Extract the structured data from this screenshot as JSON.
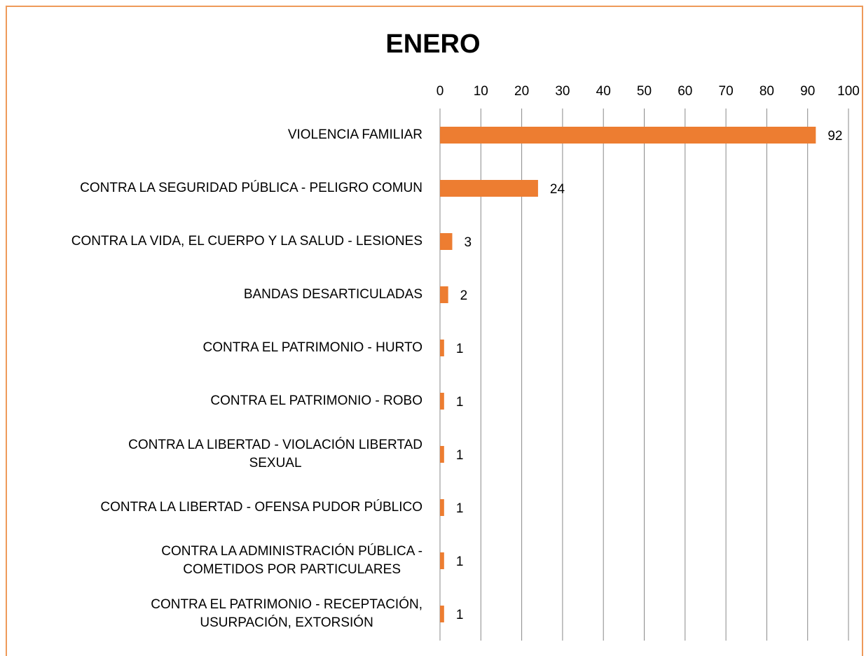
{
  "chart_data": {
    "type": "barh",
    "title": "ENERO",
    "categories": [
      "VIOLENCIA FAMILIAR",
      "CONTRA LA SEGURIDAD PÚBLICA - PELIGRO COMUN",
      "CONTRA LA VIDA, EL CUERPO Y LA SALUD - LESIONES",
      "BANDAS DESARTICULADAS",
      "CONTRA EL PATRIMONIO - HURTO",
      "CONTRA EL PATRIMONIO - ROBO",
      "CONTRA LA LIBERTAD - VIOLACIÓN LIBERTAD\nSEXUAL",
      "CONTRA LA LIBERTAD - OFENSA PUDOR PÚBLICO",
      "CONTRA LA ADMINISTRACIÓN PÚBLICA -\nCOMETIDOS POR PARTICULARES",
      "CONTRA EL PATRIMONIO - RECEPTACIÓN,\nUSURPACIÓN, EXTORSIÓN"
    ],
    "values": [
      92,
      24,
      3,
      2,
      1,
      1,
      1,
      1,
      1,
      1
    ],
    "color": "#ED7D31",
    "xlim": [
      0,
      100
    ],
    "xticks": [
      0,
      10,
      20,
      30,
      40,
      50,
      60,
      70,
      80,
      90,
      100
    ],
    "grid": true
  }
}
